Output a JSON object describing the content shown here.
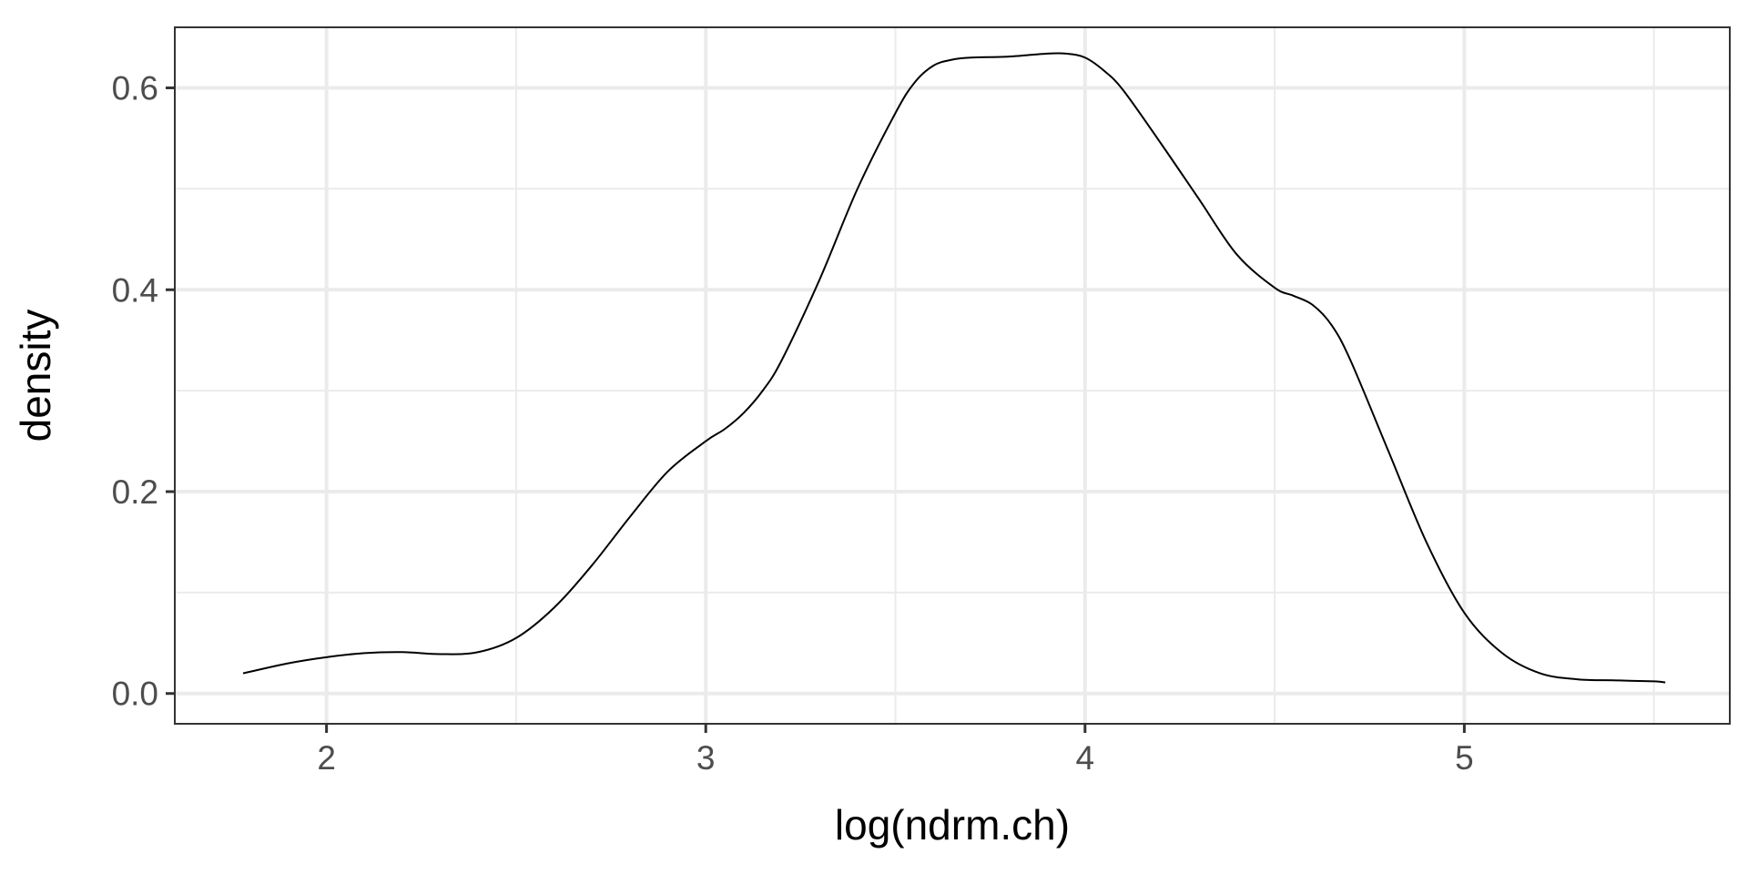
{
  "chart_data": {
    "type": "line",
    "title": "",
    "xlabel": "log(ndrm.ch)",
    "ylabel": "density",
    "xlim": [
      1.6,
      5.7
    ],
    "ylim": [
      -0.03,
      0.66
    ],
    "x_ticks": [
      {
        "value": 2,
        "label": "2"
      },
      {
        "value": 3,
        "label": "3"
      },
      {
        "value": 4,
        "label": "4"
      },
      {
        "value": 5,
        "label": "5"
      }
    ],
    "x_minor_ticks": [
      2.5,
      3.5,
      4.5,
      5.5
    ],
    "y_ticks": [
      {
        "value": 0.0,
        "label": "0.0"
      },
      {
        "value": 0.2,
        "label": "0.2"
      },
      {
        "value": 0.4,
        "label": "0.4"
      },
      {
        "value": 0.6,
        "label": "0.6"
      }
    ],
    "y_minor_ticks": [
      0.1,
      0.3,
      0.5
    ],
    "grid": true,
    "legend": "none",
    "series": [
      {
        "color": "#000000",
        "x": [
          1.78,
          1.9,
          2.0,
          2.1,
          2.2,
          2.3,
          2.4,
          2.5,
          2.6,
          2.7,
          2.8,
          2.9,
          3.0,
          3.05,
          3.1,
          3.15,
          3.2,
          3.3,
          3.4,
          3.5,
          3.55,
          3.6,
          3.65,
          3.7,
          3.8,
          3.9,
          3.95,
          4.0,
          4.05,
          4.1,
          4.2,
          4.3,
          4.4,
          4.5,
          4.55,
          4.6,
          4.65,
          4.7,
          4.8,
          4.9,
          5.0,
          5.1,
          5.2,
          5.3,
          5.4,
          5.5,
          5.53
        ],
        "y": [
          0.02,
          0.03,
          0.036,
          0.04,
          0.041,
          0.039,
          0.041,
          0.055,
          0.085,
          0.127,
          0.175,
          0.22,
          0.25,
          0.262,
          0.278,
          0.3,
          0.33,
          0.41,
          0.5,
          0.575,
          0.605,
          0.622,
          0.628,
          0.63,
          0.631,
          0.634,
          0.634,
          0.63,
          0.617,
          0.598,
          0.545,
          0.49,
          0.435,
          0.402,
          0.394,
          0.385,
          0.365,
          0.33,
          0.24,
          0.15,
          0.08,
          0.04,
          0.02,
          0.014,
          0.013,
          0.012,
          0.011
        ]
      }
    ]
  }
}
